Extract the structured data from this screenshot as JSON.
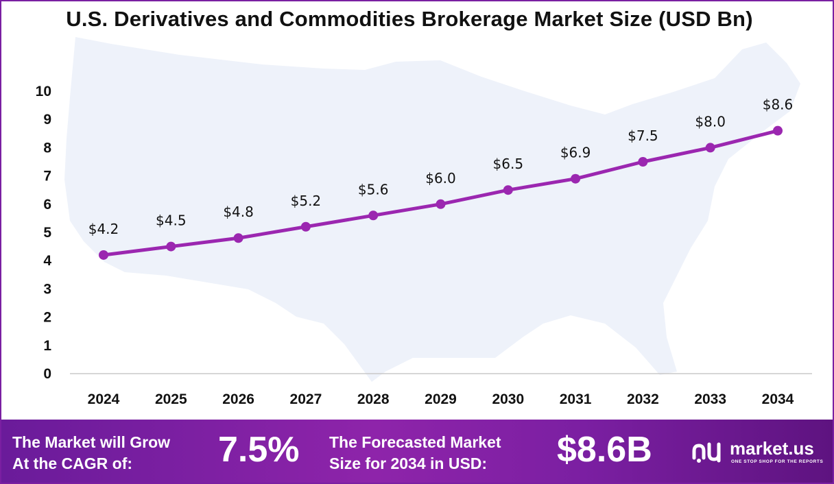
{
  "chart_data": {
    "type": "line",
    "title": "U.S. Derivatives and Commodities Brokerage Market Size (USD Bn)",
    "categories": [
      "2024",
      "2025",
      "2026",
      "2027",
      "2028",
      "2029",
      "2030",
      "2031",
      "2032",
      "2033",
      "2034"
    ],
    "values": [
      4.2,
      4.5,
      4.8,
      5.2,
      5.6,
      6.0,
      6.5,
      6.9,
      7.5,
      8.0,
      8.6
    ],
    "data_labels": [
      "$4.2",
      "$4.5",
      "$4.8",
      "$5.2",
      "$5.6",
      "$6.0",
      "$6.5",
      "$6.9",
      "$7.5",
      "$8.0",
      "$8.6"
    ],
    "y_ticks": [
      "0",
      "1",
      "2",
      "3",
      "4",
      "5",
      "6",
      "7",
      "8",
      "9",
      "10"
    ],
    "ylim": [
      0,
      10
    ],
    "grid": false,
    "line_color": "#9b27b0",
    "background_map": "United States silhouette"
  },
  "footer": {
    "cagr_text_1": "The Market will Grow",
    "cagr_text_2": "At the CAGR of:",
    "cagr_value": "7.5%",
    "forecast_text_1": "The Forecasted Market",
    "forecast_text_2": "Size for 2034 in USD:",
    "forecast_value": "$8.6B",
    "logo_icon": "market-us-logo-icon",
    "logo_name": "market.us",
    "logo_tagline": "ONE STOP SHOP FOR THE REPORTS"
  },
  "colors": {
    "accent": "#9b27b0",
    "footer_start": "#6a1b9a",
    "footer_end": "#5e1380",
    "map_fill": "#eef2fa"
  }
}
